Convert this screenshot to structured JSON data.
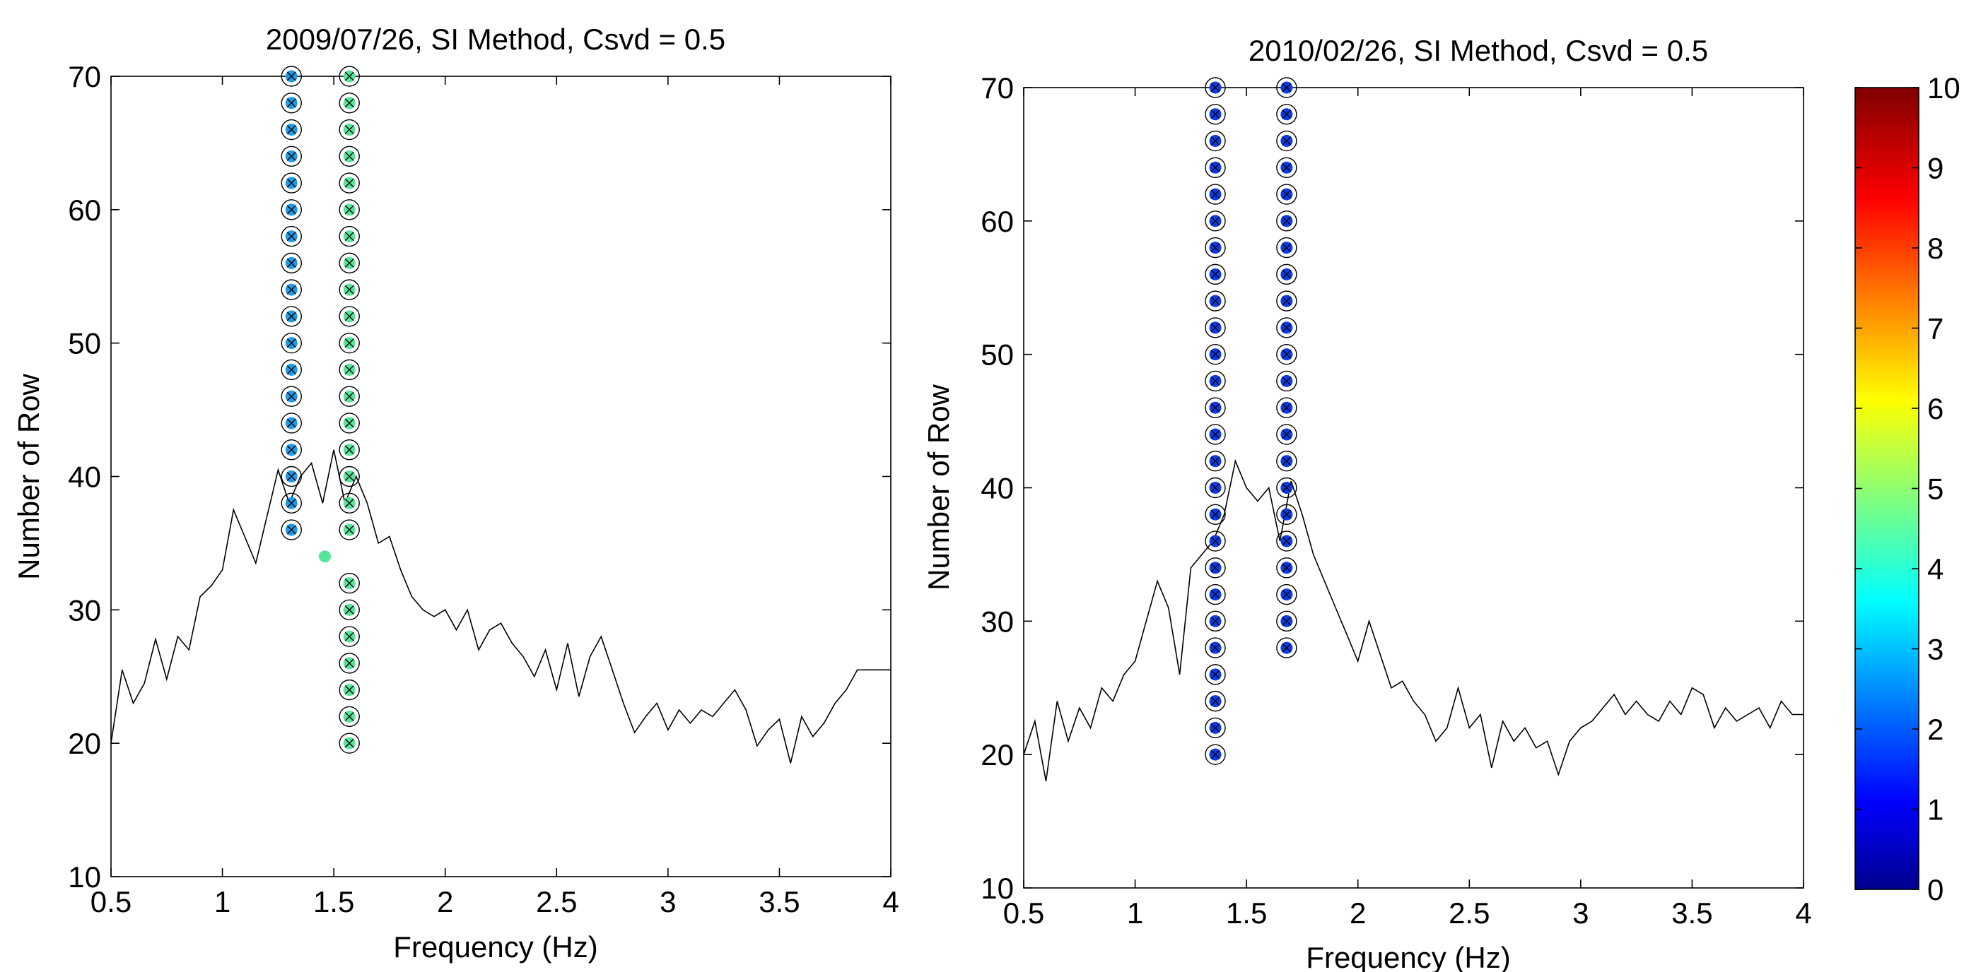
{
  "chart_data": [
    {
      "type": "scatter",
      "title": "2009/07/26, SI Method, Csvd = 0.5",
      "xlabel": "Frequency (Hz)",
      "ylabel": "Number of Row",
      "xlim": [
        0.5,
        4
      ],
      "ylim": [
        10,
        70
      ],
      "xticks": [
        "0.5",
        "1",
        "1.5",
        "2",
        "2.5",
        "3",
        "3.5",
        "4"
      ],
      "yticks": [
        "10",
        "20",
        "30",
        "40",
        "50",
        "60",
        "70"
      ],
      "grid": false,
      "colormap": "jet",
      "series": [
        {
          "x": 1.31,
          "rows": [
            36,
            38,
            40,
            42,
            44,
            46,
            48,
            50,
            52,
            54,
            56,
            58,
            60,
            62,
            64,
            66,
            68,
            70
          ],
          "color_value": 2.8,
          "color": "#1e9be6"
        },
        {
          "x": 1.57,
          "rows": [
            20,
            22,
            24,
            26,
            28,
            30,
            32,
            36,
            38,
            40,
            42,
            44,
            46,
            48,
            50,
            52,
            54,
            56,
            58,
            60,
            62,
            64,
            66,
            68,
            70
          ],
          "color_value": 4.8,
          "color": "#57e59a"
        },
        {
          "x": 1.46,
          "rows": [
            34
          ],
          "color_value": 4.8,
          "color": "#57e59a",
          "unmarked": true
        }
      ],
      "spectrum": {
        "color": "#000000",
        "x": [
          0.5,
          0.55,
          0.6,
          0.65,
          0.7,
          0.75,
          0.8,
          0.85,
          0.9,
          0.95,
          1.0,
          1.05,
          1.1,
          1.15,
          1.2,
          1.25,
          1.3,
          1.35,
          1.4,
          1.45,
          1.5,
          1.55,
          1.6,
          1.65,
          1.7,
          1.75,
          1.8,
          1.85,
          1.9,
          1.95,
          2.0,
          2.05,
          2.1,
          2.15,
          2.2,
          2.25,
          2.3,
          2.35,
          2.4,
          2.45,
          2.5,
          2.55,
          2.6,
          2.65,
          2.7,
          2.75,
          2.8,
          2.85,
          2.9,
          2.95,
          3.0,
          3.05,
          3.1,
          3.15,
          3.2,
          3.25,
          3.3,
          3.35,
          3.4,
          3.45,
          3.5,
          3.55,
          3.6,
          3.65,
          3.7,
          3.75,
          3.8,
          3.85,
          3.9,
          3.95,
          4.0
        ],
        "y": [
          20,
          25.5,
          23,
          24.5,
          27.8,
          24.8,
          28,
          27,
          31,
          31.8,
          33,
          37.5,
          35.5,
          33.5,
          37,
          40.5,
          38,
          40,
          41,
          38,
          42,
          38,
          40,
          38,
          35,
          35.5,
          33,
          31,
          30,
          29.5,
          30,
          28.5,
          30,
          27,
          28.5,
          29,
          27.5,
          26.5,
          25,
          27,
          24,
          27.5,
          23.5,
          26.5,
          28,
          25.5,
          23,
          20.8,
          22,
          23,
          21,
          22.5,
          21.5,
          22.5,
          22,
          23,
          24,
          22.5,
          19.8,
          21,
          21.8,
          18.5,
          22,
          20.5,
          21.5,
          23,
          24,
          25.5,
          25.5,
          25.5,
          25.5
        ]
      }
    },
    {
      "type": "scatter",
      "title": "2010/02/26, SI Method, Csvd = 0.5",
      "xlabel": "Frequency (Hz)",
      "ylabel": "Number of Row",
      "xlim": [
        0.5,
        4
      ],
      "ylim": [
        10,
        70
      ],
      "xticks": [
        "0.5",
        "1",
        "1.5",
        "2",
        "2.5",
        "3",
        "3.5",
        "4"
      ],
      "yticks": [
        "10",
        "20",
        "30",
        "40",
        "50",
        "60",
        "70"
      ],
      "grid": false,
      "colormap": "jet",
      "series": [
        {
          "x": 1.36,
          "rows": [
            20,
            22,
            24,
            26,
            28,
            30,
            32,
            34,
            36,
            38,
            40,
            42,
            44,
            46,
            48,
            50,
            52,
            54,
            56,
            58,
            60,
            62,
            64,
            66,
            68,
            70
          ],
          "color_value": 1.6,
          "color": "#0a3ce6"
        },
        {
          "x": 1.68,
          "rows": [
            28,
            30,
            32,
            34,
            36,
            38,
            40,
            42,
            44,
            46,
            48,
            50,
            52,
            54,
            56,
            58,
            60,
            62,
            64,
            66,
            68,
            70
          ],
          "color_value": 1.6,
          "color": "#0a3ce6"
        }
      ],
      "spectrum": {
        "color": "#000000",
        "x": [
          0.5,
          0.55,
          0.6,
          0.65,
          0.7,
          0.75,
          0.8,
          0.85,
          0.9,
          0.95,
          1.0,
          1.05,
          1.1,
          1.15,
          1.2,
          1.25,
          1.3,
          1.35,
          1.4,
          1.45,
          1.5,
          1.55,
          1.6,
          1.65,
          1.7,
          1.75,
          1.8,
          1.85,
          1.9,
          1.95,
          2.0,
          2.05,
          2.1,
          2.15,
          2.2,
          2.25,
          2.3,
          2.35,
          2.4,
          2.45,
          2.5,
          2.55,
          2.6,
          2.65,
          2.7,
          2.75,
          2.8,
          2.85,
          2.9,
          2.95,
          3.0,
          3.05,
          3.1,
          3.15,
          3.2,
          3.25,
          3.3,
          3.35,
          3.4,
          3.45,
          3.5,
          3.55,
          3.6,
          3.65,
          3.7,
          3.75,
          3.8,
          3.85,
          3.9,
          3.95,
          4.0
        ],
        "y": [
          20,
          22.5,
          18,
          24,
          21,
          23.5,
          22,
          25,
          24,
          26,
          27,
          30,
          33,
          31,
          26,
          34,
          35,
          36,
          38,
          42,
          40,
          39,
          40,
          36,
          40.5,
          38,
          35,
          33,
          31,
          29,
          27,
          30,
          27.5,
          25,
          25.5,
          24,
          23,
          21,
          22,
          25,
          22,
          23,
          19,
          22.5,
          21,
          22,
          20.5,
          21,
          18.5,
          21,
          22,
          22.5,
          23.5,
          24.5,
          23,
          24,
          23,
          22.5,
          24,
          23,
          25,
          24.5,
          22,
          23.5,
          22.5,
          23,
          23.5,
          22,
          24,
          23,
          23
        ]
      }
    }
  ],
  "colorbar": {
    "colormap": "jet",
    "min": 0,
    "max": 10,
    "tick_labels": [
      "0",
      "1",
      "2",
      "3",
      "4",
      "5",
      "6",
      "7",
      "8",
      "9",
      "10"
    ]
  }
}
